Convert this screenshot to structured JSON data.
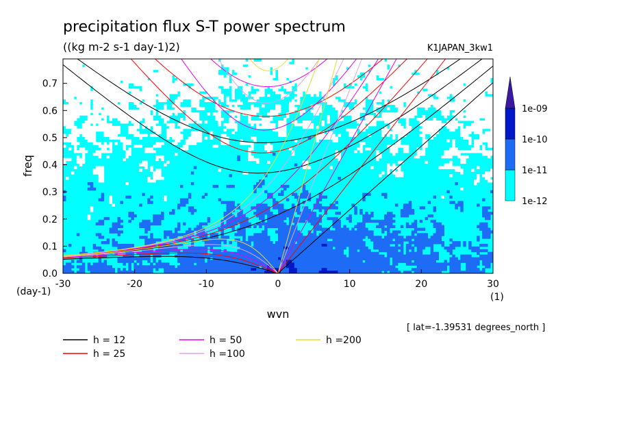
{
  "chart_data": {
    "type": "heatmap",
    "title": "precipitation flux S-T power spectrum",
    "subtitle": "((kg m-2 s-1 day-1)2)",
    "run_name": "K1JAPAN_3kw1",
    "xlabel": "wvn",
    "ylabel": "freq",
    "x_unit": "(1)",
    "y_unit": "(day-1)",
    "xlim": [
      -30,
      30
    ],
    "ylim": [
      0,
      0.79
    ],
    "x_ticks": [
      "-30",
      "-20",
      "-10",
      "0",
      "10",
      "20",
      "30"
    ],
    "x_tick_values": [
      -30,
      -20,
      -10,
      0,
      10,
      20,
      30
    ],
    "y_ticks": [
      "0.0",
      "0.1",
      "0.2",
      "0.3",
      "0.4",
      "0.5",
      "0.6",
      "0.7"
    ],
    "y_tick_values": [
      0,
      0.1,
      0.2,
      0.3,
      0.4,
      0.5,
      0.6,
      0.7
    ],
    "note": "[ lat=-1.39531 degrees_north ]",
    "colorbar": {
      "labels": [
        "1e-12",
        "1e-11",
        "1e-10",
        "1e-09"
      ],
      "levels": [
        1e-12,
        1e-11,
        1e-10,
        1e-09
      ],
      "colors": [
        "#00ffff",
        "#1e6cf5",
        "#0019c8",
        "#3a1aa0"
      ],
      "extend": "max"
    },
    "field_colors": {
      "below_1e-12": "#ffffff",
      "1e-12_to_1e-11": "#00ffff",
      "1e-11_to_1e-10": "#1e6cf5",
      "1e-10_to_1e-09": "#0019c8"
    },
    "dispersion_curves": [
      {
        "label": "h = 12",
        "h": 12,
        "color": "#000000"
      },
      {
        "label": "h = 25",
        "h": 25,
        "color": "#ff0000"
      },
      {
        "label": "h = 50",
        "h": 50,
        "color": "#e600e6"
      },
      {
        "label": "h =100",
        "h": 100,
        "color": "#e6a0e6"
      },
      {
        "label": "h =200",
        "h": 200,
        "color": "#e6dc32"
      }
    ],
    "legend_placement": "bottom-left"
  }
}
